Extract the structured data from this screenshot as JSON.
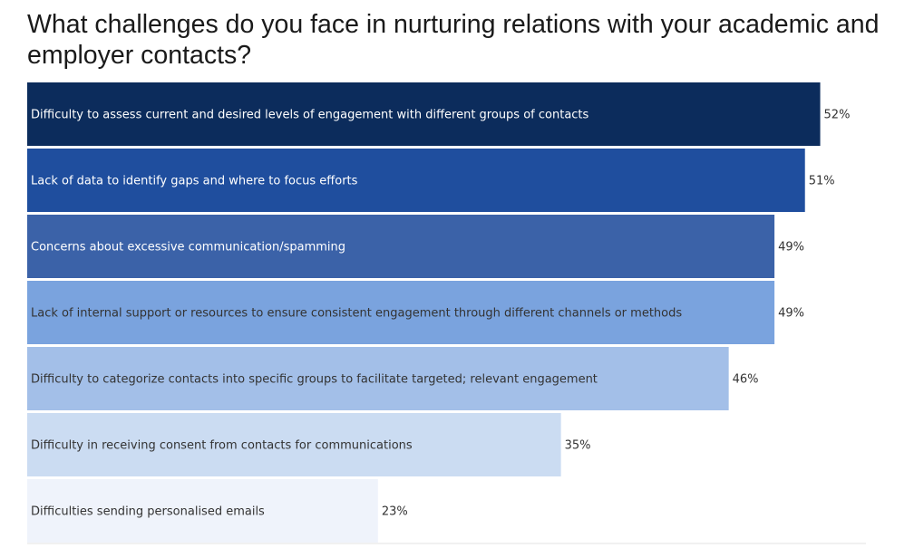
{
  "chart_data": {
    "type": "bar",
    "orientation": "horizontal",
    "title": "What challenges do you face in nurturing relations with your academic and employer contacts?",
    "xlim": [
      0,
      55
    ],
    "categories": [
      "Difficulty to assess current and desired levels of engagement with different groups of contacts",
      "Lack of data to identify gaps and where to focus efforts",
      "Concerns about excessive communication/spamming",
      "Lack of internal support or resources to ensure consistent engagement through different channels or methods",
      "Difficulty to categorize contacts into specific groups to facilitate targeted; relevant engagement",
      "Difficulty in receiving consent from contacts for communications",
      "Difficulties sending personalised emails"
    ],
    "values": [
      52,
      51,
      49,
      49,
      46,
      35,
      23
    ],
    "value_labels": [
      "52%",
      "51%",
      "49%",
      "49%",
      "46%",
      "35%",
      "23%"
    ],
    "colors": [
      "#0c2c5c",
      "#1f4e9e",
      "#3b62a8",
      "#7aa3de",
      "#a3bfe8",
      "#cbdcf2",
      "#eff3fb"
    ],
    "label_colors": [
      "#ffffff",
      "#ffffff",
      "#ffffff",
      "#333333",
      "#333333",
      "#333333",
      "#333333"
    ],
    "grid": false,
    "legend": "none"
  }
}
